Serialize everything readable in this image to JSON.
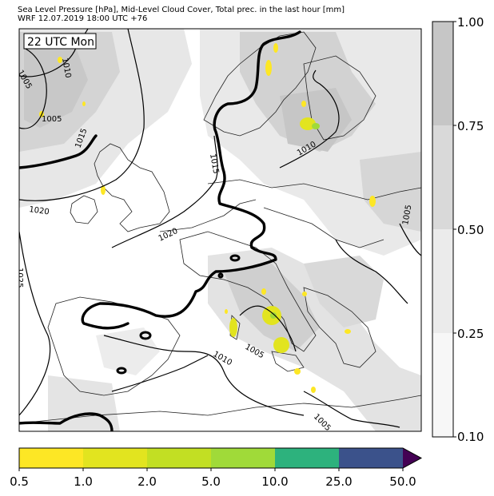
{
  "header": {
    "title_line1": "Sea Level Pressure [hPa], Mid-Level Cloud Cover, Total prec. in the last hour [mm]",
    "title_line2": "WRF 12.07.2019 18:00 UTC +76"
  },
  "map": {
    "time_badge": "22 UTC Mon",
    "isobar_labels": [
      "1005",
      "1010",
      "1015",
      "1005",
      "1020",
      "1020",
      "1015",
      "1025",
      "1010",
      "1005",
      "1010",
      "1005",
      "1005"
    ],
    "thick_isobar_hpa": 1015
  },
  "cloud_colorbar": {
    "ticks": [
      "1.00",
      "0.75",
      "0.50",
      "0.25",
      "0.10"
    ],
    "colors": [
      "#c6c6c6",
      "#d9d9d9",
      "#ebebeb",
      "#f7f7f7"
    ]
  },
  "precip_colorbar": {
    "ticks": [
      "0.5",
      "1.0",
      "2.0",
      "5.0",
      "10.0",
      "25.0",
      "50.0"
    ],
    "colors": [
      "#fde725",
      "#e2e41f",
      "#c2df23",
      "#a0da39",
      "#4ac16d",
      "#2db27d",
      "#3b528b",
      "#440154"
    ]
  }
}
